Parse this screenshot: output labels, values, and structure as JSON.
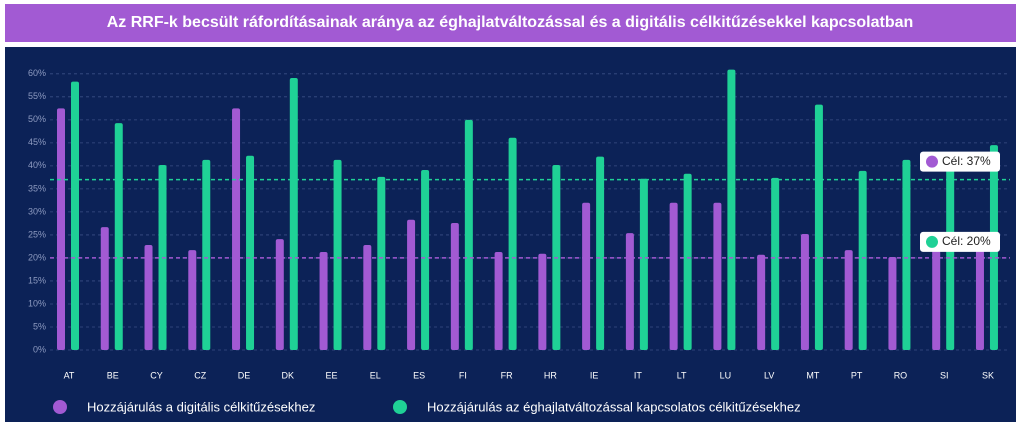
{
  "chart_data": {
    "type": "bar",
    "title": "Az RRF-k becsült ráfordításainak aránya az éghajlatváltozással és a digitális célkitűzésekkel kapcsolatban",
    "categories": [
      "AT",
      "BE",
      "CY",
      "CZ",
      "DE",
      "DK",
      "EE",
      "EL",
      "ES",
      "FI",
      "FR",
      "HR",
      "IE",
      "IT",
      "LT",
      "LU",
      "LV",
      "MT",
      "PT",
      "RO",
      "SI",
      "SK"
    ],
    "series": [
      {
        "name": "Hozzájárulás a digitális célkitűzésekhez",
        "color": "#a25ad3",
        "values": [
          52.5,
          26.7,
          22.8,
          21.7,
          52.5,
          24.1,
          21.3,
          22.8,
          28.3,
          27.6,
          21.3,
          20.9,
          32,
          25.4,
          32,
          32,
          20.7,
          25.2,
          21.7,
          20.2,
          21.7,
          21.7
        ]
      },
      {
        "name": "Hozzájárulás az éghajlatváltozással kapcsolatos célkitűzésekhez",
        "color": "#1fd196",
        "values": [
          58.3,
          49.3,
          40.2,
          41.3,
          42.2,
          59.1,
          41.3,
          37.6,
          39.1,
          50,
          46.1,
          40.2,
          42,
          37.2,
          38.3,
          60.9,
          37.4,
          53.3,
          38.9,
          41.3,
          40,
          44.5
        ]
      }
    ],
    "ylim": [
      0,
      63
    ],
    "yticks": [
      {
        "value": 0,
        "label": "0%"
      },
      {
        "value": 5,
        "label": "5%"
      },
      {
        "value": 10,
        "label": "10%"
      },
      {
        "value": 15,
        "label": "15%"
      },
      {
        "value": 20,
        "label": "20%"
      },
      {
        "value": 25,
        "label": "25%"
      },
      {
        "value": 30,
        "label": "30%"
      },
      {
        "value": 35,
        "label": "35%"
      },
      {
        "value": 40,
        "label": "40%"
      },
      {
        "value": 45,
        "label": "45%"
      },
      {
        "value": 50,
        "label": "50%"
      },
      {
        "value": 55,
        "label": "55%"
      },
      {
        "value": 60,
        "label": "60%"
      }
    ],
    "grid": true,
    "annotations": [
      {
        "label": "Cél: 37%",
        "value": 37,
        "line_color": "#1fd196",
        "dot_color": "#a25ad3"
      },
      {
        "label": "Cél: 20%",
        "value": 20,
        "line_color": "#a25ad3",
        "dot_color": "#1fd196"
      }
    ]
  }
}
